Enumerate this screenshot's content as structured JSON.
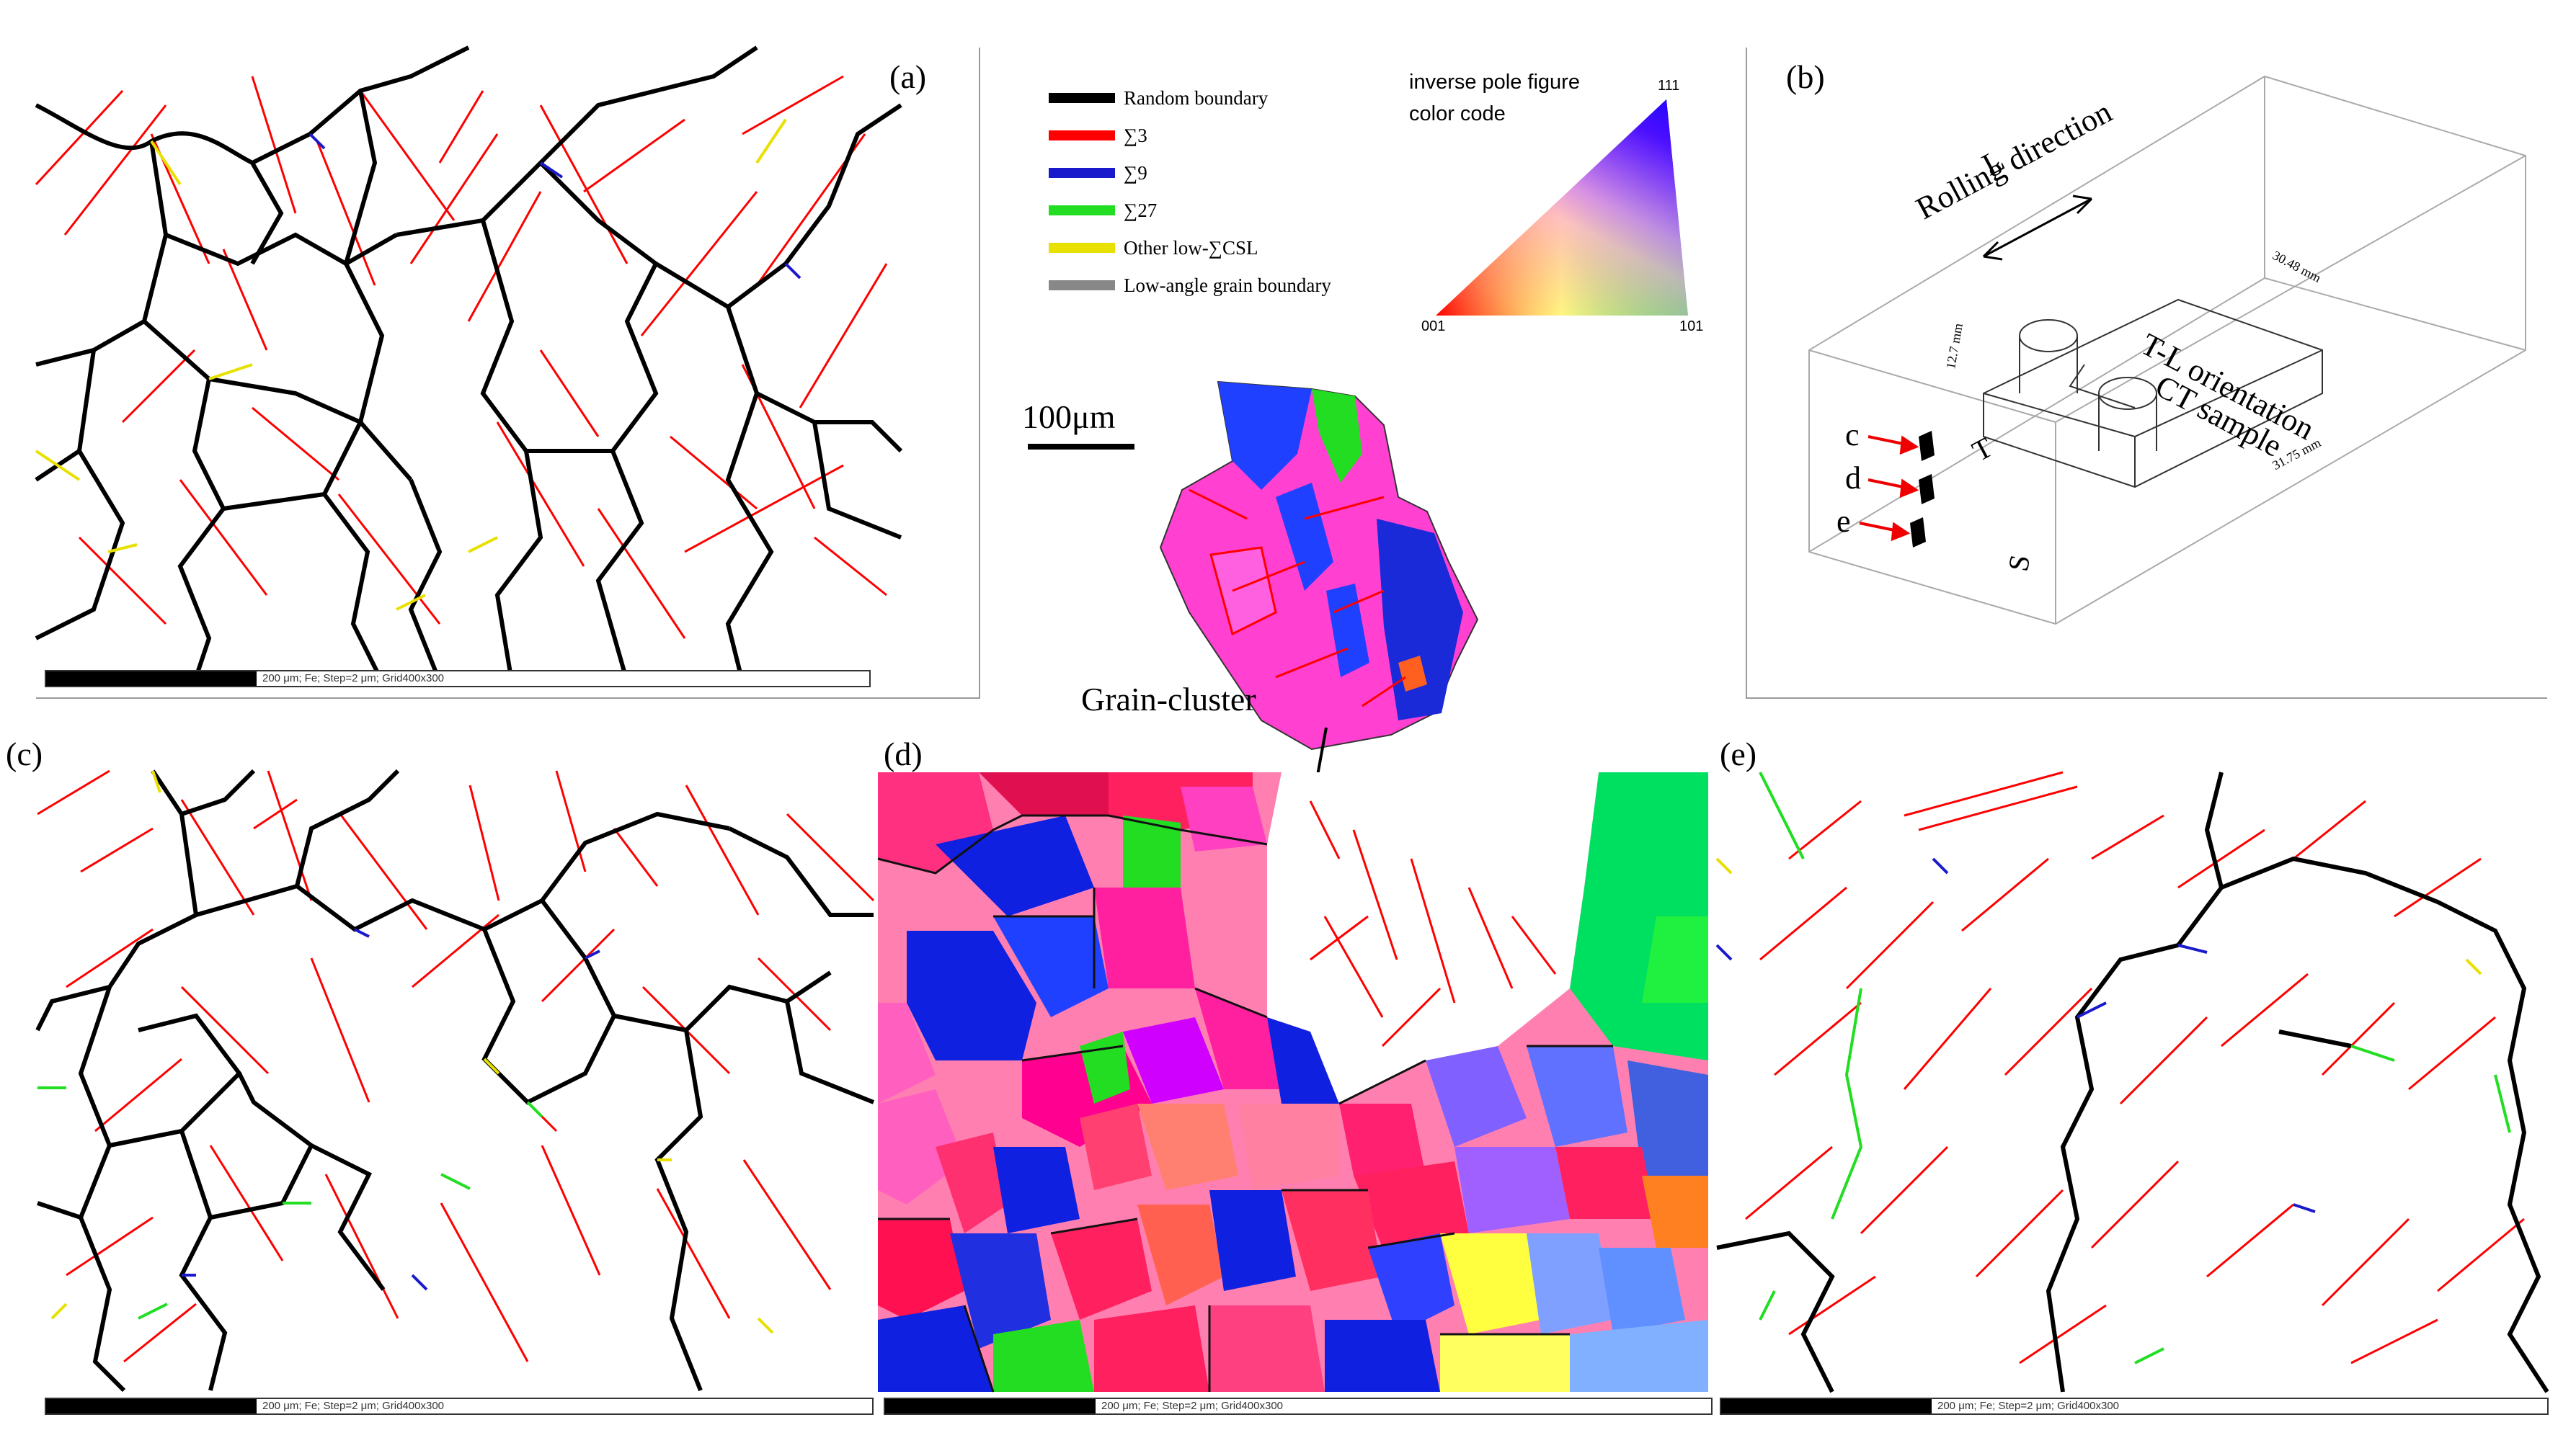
{
  "panels": {
    "a": {
      "label": "(a)",
      "scalebar_text": "200 μm; Fe; Step=2 μm; Grid400x300"
    },
    "b": {
      "label": "(b)"
    },
    "c": {
      "label": "(c)",
      "scalebar_text": "200 μm; Fe; Step=2 μm; Grid400x300"
    },
    "d": {
      "label": "(d)",
      "scalebar_text": "200 μm; Fe; Step=2 μm; Grid400x300"
    },
    "e": {
      "label": "(e)",
      "scalebar_text": "200 μm; Fe; Step=2 μm; Grid400x300"
    }
  },
  "legend": {
    "items": [
      {
        "label": "Random boundary",
        "color": "#000000"
      },
      {
        "label": "∑3",
        "color": "#ff0000"
      },
      {
        "label": "∑9",
        "color": "#1a1acc"
      },
      {
        "label": "∑27",
        "color": "#22dd22"
      },
      {
        "label": "Other low-∑CSL",
        "color": "#e8e000"
      },
      {
        "label": "Low-angle grain boundary",
        "color": "#888888"
      }
    ]
  },
  "ipf": {
    "title_line1": "inverse pole figure",
    "title_line2": "color code",
    "corner_111": "111",
    "corner_001": "001",
    "corner_101": "101"
  },
  "scale": {
    "text": "100μm"
  },
  "grain_cluster": {
    "label": "Grain-cluster"
  },
  "schematic": {
    "L": "L",
    "rolling": "Rolling direction",
    "orientation": "T-L orientation",
    "ct": "CT sample",
    "T": "T",
    "S": "S",
    "dim_top": "30.48 mm",
    "dim_side": "12.7 mm",
    "dim_bottom": "31.75 mm",
    "marker_c": "c",
    "marker_d": "d",
    "marker_e": "e"
  }
}
